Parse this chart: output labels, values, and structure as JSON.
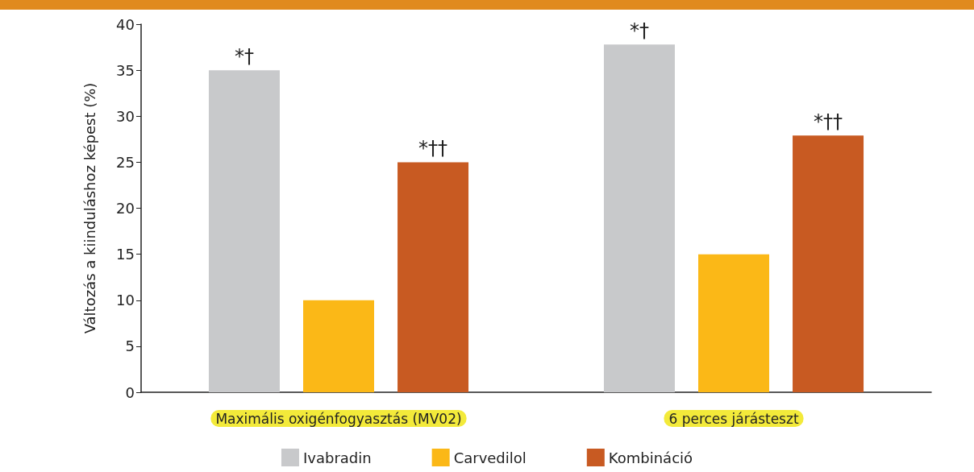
{
  "chart_data": {
    "type": "bar",
    "ylabel": "Változás a kiinduláshoz képest (%)",
    "categories": [
      "Maximális oxigénfogyasztás (MV02)",
      "6 perces járásteszt"
    ],
    "series": [
      {
        "name": "Ivabradin",
        "color": "#c8c9cb",
        "values": [
          35,
          37.8
        ],
        "value_labels": [
          "*†",
          "*†"
        ]
      },
      {
        "name": "Carvedilol",
        "color": "#fbb817",
        "values": [
          10,
          15
        ],
        "value_labels": [
          null,
          null
        ]
      },
      {
        "name": "Kombináció",
        "color": "#c85a22",
        "values": [
          25,
          27.9
        ],
        "value_labels": [
          "*††",
          "*††"
        ]
      }
    ],
    "ylim": [
      0,
      40
    ],
    "yticks": [
      0,
      5,
      10,
      15,
      20,
      25,
      30,
      35,
      40
    ],
    "grid": false,
    "legend": "bottom"
  }
}
